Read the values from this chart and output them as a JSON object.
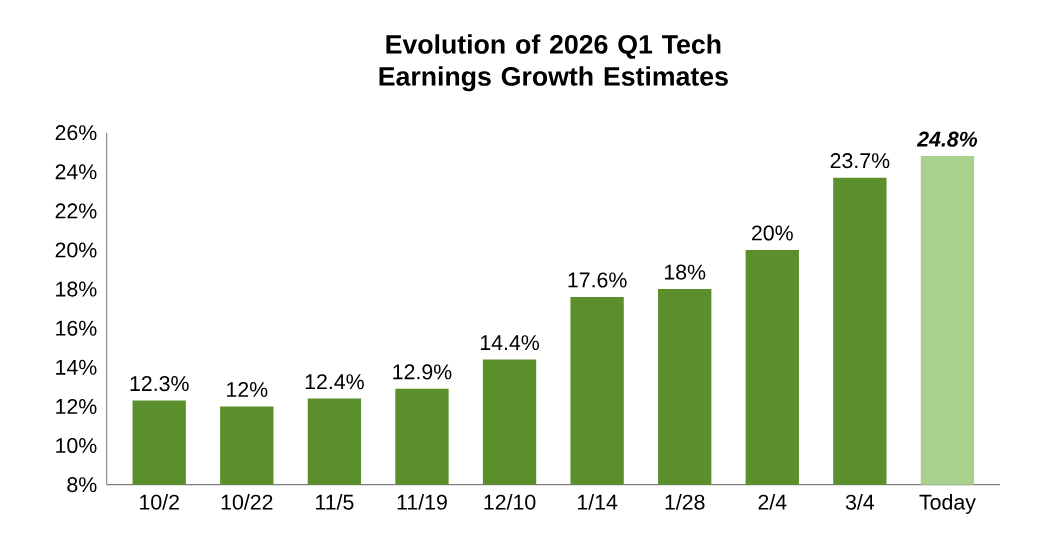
{
  "chart_data": {
    "type": "bar",
    "title": "Evolution of 2026 Q1 Tech Earnings Growth Estimates",
    "categories": [
      "10/2",
      "10/22",
      "11/5",
      "11/19",
      "12/10",
      "1/14",
      "1/28",
      "2/4",
      "3/4",
      "Today"
    ],
    "values": [
      12.3,
      12,
      12.4,
      12.9,
      14.4,
      17.6,
      18,
      20,
      23.7,
      24.8
    ],
    "value_labels": [
      "12.3%",
      "12%",
      "12.4%",
      "12.9%",
      "14.4%",
      "17.6%",
      "18%",
      "20%",
      "23.7%",
      "24.8%"
    ],
    "colors": [
      "#5b8f2c",
      "#5b8f2c",
      "#5b8f2c",
      "#5b8f2c",
      "#5b8f2c",
      "#5b8f2c",
      "#5b8f2c",
      "#5b8f2c",
      "#5b8f2c",
      "#a9d18e"
    ],
    "ylim": [
      8,
      26
    ],
    "yticks": [
      {
        "value": 8,
        "label": "8%"
      },
      {
        "value": 10,
        "label": "10%"
      },
      {
        "value": 12,
        "label": "12%"
      },
      {
        "value": 14,
        "label": "14%"
      },
      {
        "value": 16,
        "label": "16%"
      },
      {
        "value": 18,
        "label": "18%"
      },
      {
        "value": 20,
        "label": "20%"
      },
      {
        "value": 22,
        "label": "22%"
      },
      {
        "value": 24,
        "label": "24%"
      },
      {
        "value": 26,
        "label": "26%"
      }
    ],
    "grid": false
  }
}
